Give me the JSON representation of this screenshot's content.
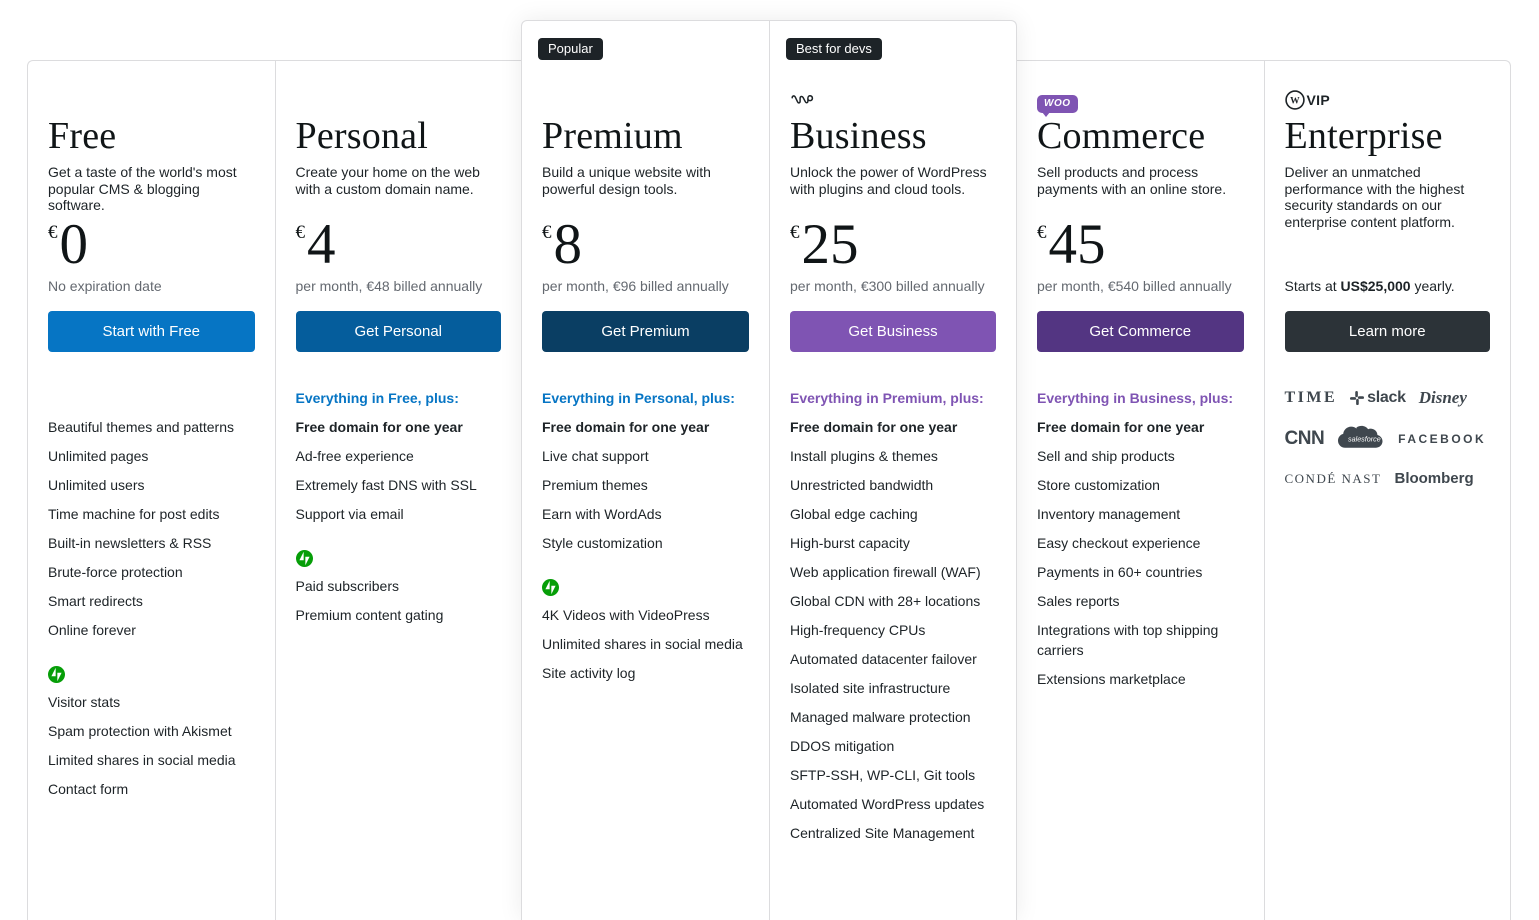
{
  "page": {
    "background": "#ffffff",
    "border_color": "#dcdcde"
  },
  "colors": {
    "accent_blue": "#0675C4",
    "everything_purple": "#7F54B3",
    "badge_bg": "#1D2327",
    "jetpack_green": "#069E08",
    "woo_purple": "#7F54B3",
    "muted_gray": "#646970"
  },
  "plans": [
    {
      "id": "free",
      "group": "left",
      "elevated": false,
      "badge": null,
      "logo": null,
      "title": "Free",
      "description": "Get a taste of the world's most popular CMS & blogging software.",
      "currency": "€",
      "price": "0",
      "price_note": "No expiration date",
      "button": {
        "label": "Start with Free",
        "color": "#0675C4"
      },
      "everything_line": null,
      "bold_feature": null,
      "features": [
        "Beautiful themes and patterns",
        "Unlimited pages",
        "Unlimited users",
        "Time machine for post edits",
        "Built-in newsletters & RSS",
        "Brute-force protection",
        "Smart redirects",
        "Online forever"
      ],
      "jetpack_features": [
        "Visitor stats",
        "Spam protection with Akismet",
        "Limited shares in social media",
        "Contact form"
      ]
    },
    {
      "id": "personal",
      "group": "left",
      "elevated": false,
      "badge": null,
      "logo": null,
      "title": "Personal",
      "description": "Create your home on the web with a custom domain name.",
      "currency": "€",
      "price": "4",
      "price_note": "per month, €48 billed annually",
      "button": {
        "label": "Get Personal",
        "color": "#055D9C"
      },
      "everything_line": {
        "text": "Everything in Free, plus:",
        "color": "#0675C4"
      },
      "bold_feature": "Free domain for one year",
      "features": [
        "Ad-free experience",
        "Extremely fast DNS with SSL",
        "Support via email"
      ],
      "jetpack_features": [
        "Paid subscribers",
        "Premium content gating"
      ]
    },
    {
      "id": "premium",
      "group": "elevated",
      "elevated": true,
      "badge": "Popular",
      "logo": null,
      "title": "Premium",
      "description": "Build a unique website with powerful design tools.",
      "currency": "€",
      "price": "8",
      "price_note": "per month, €96 billed annually",
      "button": {
        "label": "Get Premium",
        "color": "#0A3E63"
      },
      "everything_line": {
        "text": "Everything in Personal, plus:",
        "color": "#0675C4"
      },
      "bold_feature": "Free domain for one year",
      "features": [
        "Live chat support",
        "Premium themes",
        "Earn with WordAds",
        "Style customization"
      ],
      "jetpack_features": [
        "4K Videos with VideoPress",
        "Unlimited shares in social media",
        "Site activity log"
      ]
    },
    {
      "id": "business",
      "group": "elevated",
      "elevated": true,
      "badge": "Best for devs",
      "logo": "wp-cloud",
      "title": "Business",
      "description": "Unlock the power of WordPress with plugins and cloud tools.",
      "currency": "€",
      "price": "25",
      "price_note": "per month, €300 billed annually",
      "button": {
        "label": "Get Business",
        "color": "#7F54B3"
      },
      "everything_line": {
        "text": "Everything in Premium, plus:",
        "color": "#7F54B3"
      },
      "bold_feature": "Free domain for one year",
      "features": [
        "Install plugins & themes",
        "Unrestricted bandwidth",
        "Global edge caching",
        "High-burst capacity",
        "Web application firewall (WAF)",
        "Global CDN with 28+ locations",
        "High-frequency CPUs",
        "Automated datacenter failover",
        "Isolated site infrastructure",
        "Managed malware protection",
        "DDOS mitigation",
        "SFTP-SSH, WP-CLI, Git tools",
        "Automated WordPress updates",
        "Centralized Site Management"
      ],
      "jetpack_features": null
    },
    {
      "id": "commerce",
      "group": "right",
      "elevated": false,
      "badge": null,
      "logo": "woo",
      "title": "Commerce",
      "description": "Sell products and process payments with an online store.",
      "currency": "€",
      "price": "45",
      "price_note": "per month, €540 billed annually",
      "button": {
        "label": "Get Commerce",
        "color": "#533582"
      },
      "everything_line": {
        "text": "Everything in Business, plus:",
        "color": "#7F54B3"
      },
      "bold_feature": "Free domain for one year",
      "features": [
        "Sell and ship products",
        "Store customization",
        "Inventory management",
        "Easy checkout experience",
        "Payments in 60+ countries",
        "Sales reports",
        "Integrations with top shipping carriers",
        "Extensions marketplace"
      ],
      "jetpack_features": null
    },
    {
      "id": "enterprise",
      "group": "right",
      "elevated": false,
      "badge": null,
      "logo": "wpvip",
      "title": "Enterprise",
      "description": "Deliver an unmatched performance with the highest security standards on our enterprise content platform.",
      "currency": null,
      "price": null,
      "price_note": null,
      "starts_at": {
        "prefix": "Starts at ",
        "amount": "US$25,000",
        "suffix": " yearly."
      },
      "button": {
        "label": "Learn more",
        "color": "#2C3338"
      },
      "everything_line": null,
      "bold_feature": null,
      "features": null,
      "jetpack_features": null,
      "brand_logos": [
        {
          "id": "time",
          "label": "TIME"
        },
        {
          "id": "slack",
          "label": "slack"
        },
        {
          "id": "disney",
          "label": "Disney"
        },
        {
          "id": "cnn",
          "label": "CNN"
        },
        {
          "id": "salesforce",
          "label": "salesforce"
        },
        {
          "id": "facebook",
          "label": "FACEBOOK"
        },
        {
          "id": "conde",
          "label": "CONDÉ NAST"
        },
        {
          "id": "bloomberg",
          "label": "Bloomberg"
        }
      ]
    }
  ]
}
